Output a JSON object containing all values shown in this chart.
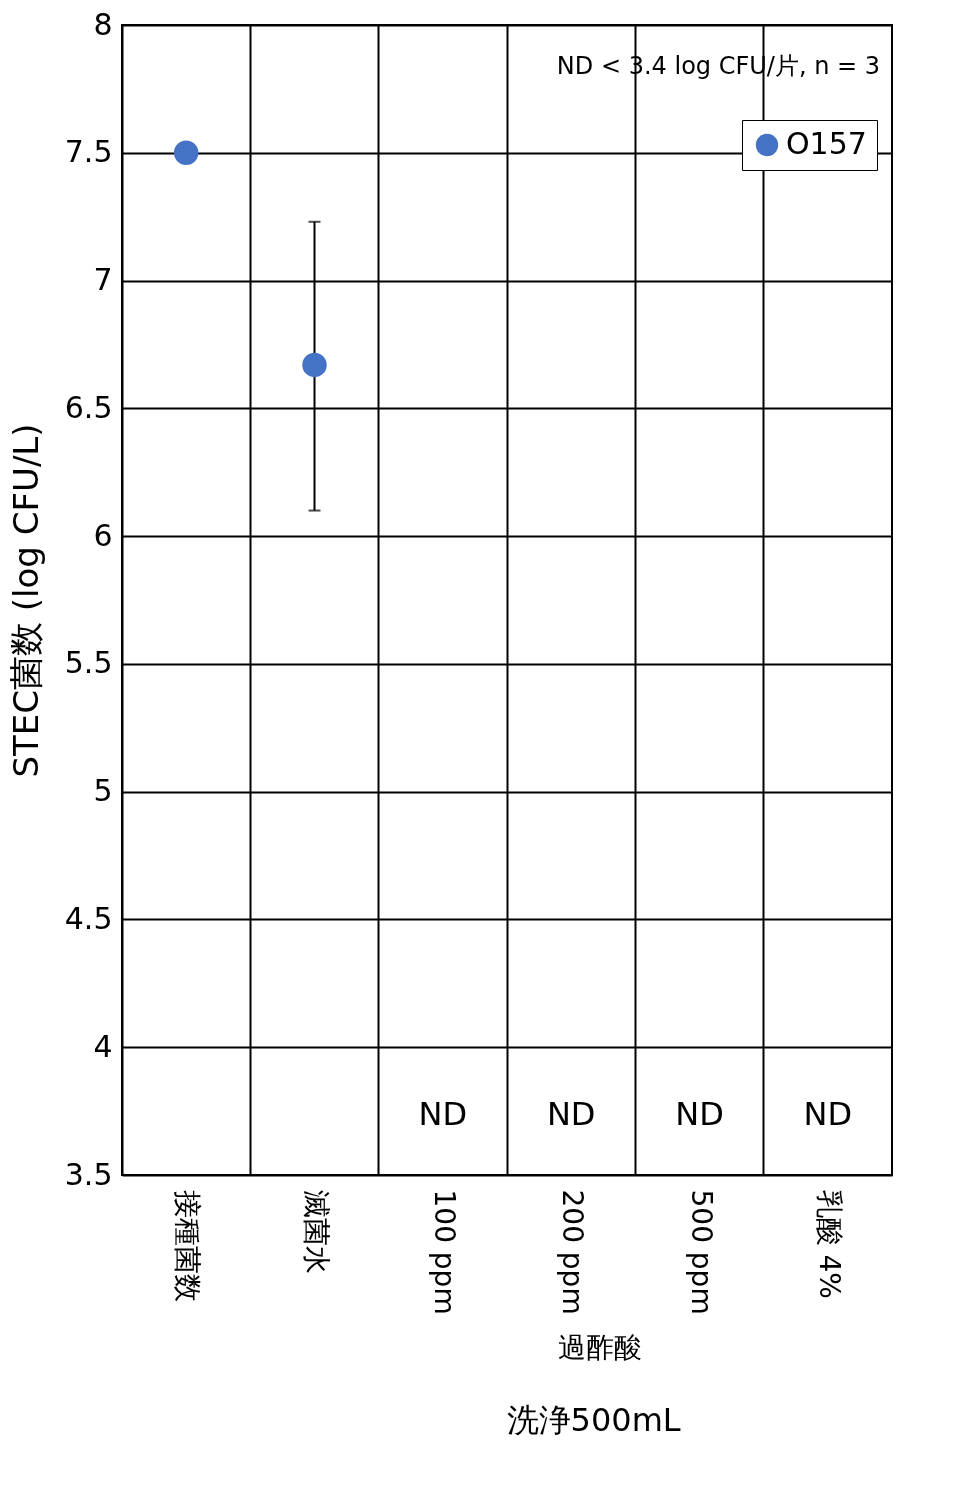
{
  "chart_data": {
    "type": "scatter",
    "ylabel": "STEC菌数 (log CFU/L)",
    "categories": [
      "接種菌数",
      "滅菌水",
      "100 ppm",
      "200 ppm",
      "500 ppm",
      "乳酸 4%"
    ],
    "series": [
      {
        "name": "O157",
        "color": "#4472c4",
        "values": [
          7.5,
          6.67,
          null,
          null,
          null,
          null
        ],
        "errors": [
          null,
          [
            6.1,
            7.23
          ],
          null,
          null,
          null,
          null
        ]
      }
    ],
    "ylim": [
      3.5,
      8
    ],
    "yticks": [
      3.5,
      4,
      4.5,
      5,
      5.5,
      6,
      6.5,
      7,
      7.5,
      8
    ],
    "grid": true,
    "legend": "top right",
    "marker": "circle",
    "annotations": [
      "ND < 3.4 log CFU/片, n = 3",
      "過酢酸",
      "洗浄500mL",
      "ND",
      "ND",
      "ND",
      "ND"
    ]
  }
}
